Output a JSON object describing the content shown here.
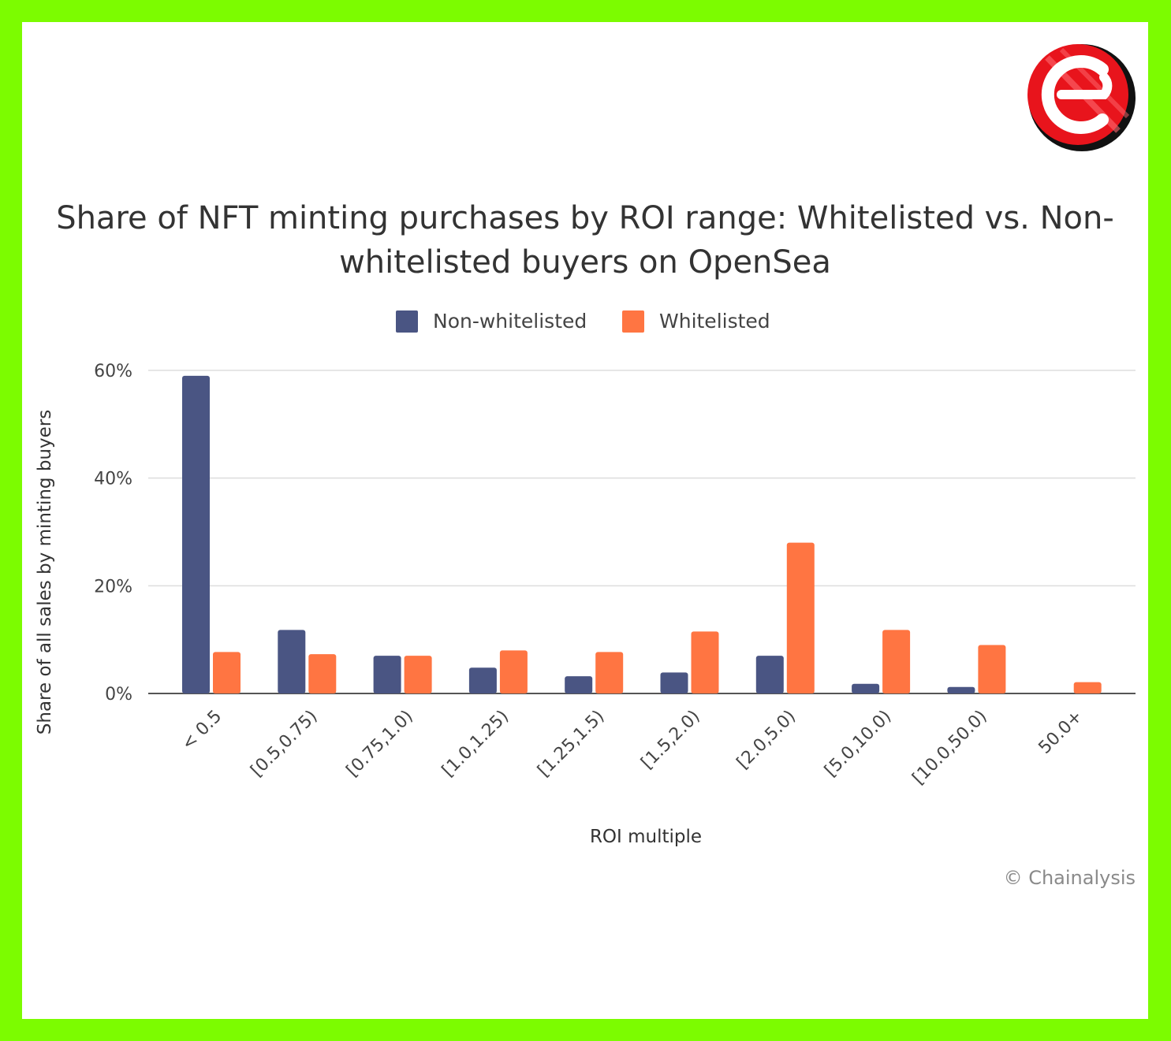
{
  "chart_data": {
    "type": "bar",
    "title_lines": [
      "Share of NFT minting purchases by ROI range: Whitelisted vs. Non-",
      "whitelisted buyers on OpenSea"
    ],
    "xlabel": "ROI multiple",
    "ylabel": "Share of all sales by minting buyers",
    "ylim": [
      0,
      60
    ],
    "yticks": [
      0,
      20,
      40,
      60
    ],
    "ytick_labels": [
      "0%",
      "20%",
      "40%",
      "60%"
    ],
    "categories": [
      "< 0.5",
      "[0.5,0.75)",
      "[0.75,1.0)",
      "[1.0,1.25)",
      "[1.25,1.5)",
      "[1.5,2.0)",
      "[2.0,5.0)",
      "[5.0,10.0)",
      "[10.0,50.0)",
      "50.0+"
    ],
    "series": [
      {
        "name": "Non-whitelisted",
        "color": "#4a5583",
        "values": [
          59,
          11.8,
          7,
          4.8,
          3.2,
          3.9,
          7,
          1.8,
          1.2,
          0
        ]
      },
      {
        "name": "Whitelisted",
        "color": "#ff7542",
        "values": [
          7.7,
          7.3,
          7,
          8,
          7.7,
          11.5,
          28,
          11.8,
          9,
          2.1
        ]
      }
    ],
    "legend_position": "top-center",
    "grid": true
  },
  "credit": "© Chainalysis",
  "logo": {
    "name": "brand-logo",
    "color": "#e8141c"
  }
}
